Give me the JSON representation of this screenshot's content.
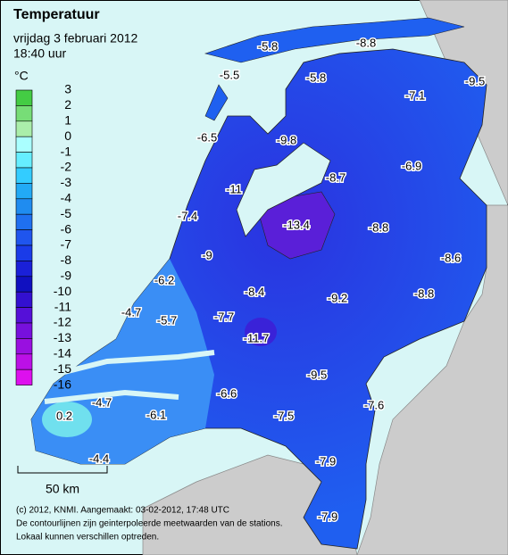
{
  "header": {
    "title": "Temperatuur",
    "date": "vrijdag 3 februari 2012",
    "time": "18:40 uur"
  },
  "legend": {
    "unit": "°C",
    "levels": [
      3,
      2,
      1,
      0,
      -1,
      -2,
      -3,
      -4,
      -5,
      -6,
      -7,
      -8,
      -9,
      -10,
      -11,
      -12,
      -13,
      -14,
      -15,
      -16
    ]
  },
  "stations": [
    -5.8,
    -8.8,
    -5.5,
    -5.8,
    -9.5,
    -7.1,
    -6.5,
    -9.8,
    -6.9,
    -8.7,
    -11.0,
    -7.4,
    -13.4,
    -8.8,
    -9.0,
    -8.6,
    -6.2,
    -8.4,
    -9.2,
    -8.8,
    -4.7,
    -5.7,
    -7.7,
    -11.7,
    -9.5,
    -6.6,
    -4.7,
    -7.6,
    -6.1,
    -7.5,
    0.2,
    -4.4,
    -7.9,
    -7.9
  ],
  "scale": {
    "label": "50 km"
  },
  "footer": [
    "(c) 2012, KNMI. Aangemaakt: 03-02-2012, 17:48 UTC",
    "De contourlijnen zijn geinterpoleerde meetwaarden van de stations.",
    "Lokaal kunnen verschillen optreden."
  ]
}
